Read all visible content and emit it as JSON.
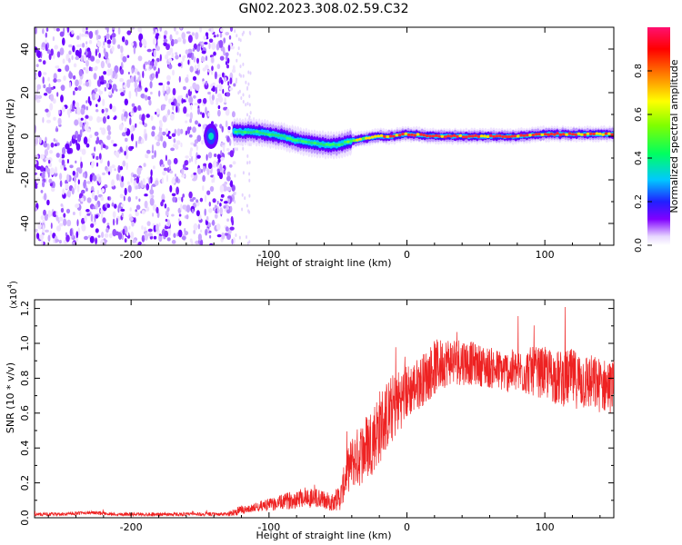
{
  "page_title": "GN02.2023.308.02.59.C32",
  "chart_data": [
    {
      "type": "heatmap",
      "title": "",
      "xlabel": "Height of straight line (km)",
      "ylabel": "Frequency (Hz)",
      "xlim": [
        -270,
        150
      ],
      "ylim": [
        -50,
        50
      ],
      "x_ticks": [
        -200,
        -100,
        0,
        100
      ],
      "x_tick_labels": [
        "-200",
        "-100",
        "0",
        "100"
      ],
      "y_ticks": [
        -40,
        -20,
        0,
        20,
        40
      ],
      "y_tick_labels": [
        "-40",
        "-20",
        "0",
        "20",
        "40"
      ],
      "colorscale": "rainbow (white-purple-blue-cyan-green-yellow-red)",
      "colorbar": {
        "label": "Normalized spectral amplitude",
        "range": [
          0,
          1
        ],
        "ticks": [
          0,
          0.2,
          0.4,
          0.6,
          0.8
        ],
        "tick_labels": [
          "0.0",
          "0.2",
          "0.4",
          "0.6",
          "0.8"
        ]
      },
      "noise_region_x": [
        -270,
        -125
      ],
      "ridge": {
        "x": [
          -125,
          -110,
          -100,
          -90,
          -80,
          -70,
          -60,
          -50,
          -45,
          -40,
          -30,
          -20,
          -10,
          0,
          20,
          40,
          60,
          80,
          100,
          120,
          150
        ],
        "frequency": [
          2,
          2,
          1,
          0,
          -2,
          -3,
          -4,
          -4,
          -3,
          -2,
          -1,
          0,
          0,
          1,
          0,
          0,
          0,
          0,
          1,
          1,
          1
        ],
        "amplitude": [
          0.45,
          0.45,
          0.5,
          0.45,
          0.4,
          0.4,
          0.4,
          0.4,
          0.5,
          0.7,
          0.75,
          0.8,
          0.85,
          0.9,
          0.95,
          0.9,
          0.9,
          0.9,
          0.9,
          0.9,
          0.85
        ]
      },
      "grid": false,
      "colors": {
        "high": "#ff2020",
        "mid": "#30e030",
        "low": "#6a00ff",
        "noise": "#a070ff"
      }
    },
    {
      "type": "line",
      "title": "",
      "xlabel": "Height of straight line (km)",
      "ylabel": "SNR (10 * v/v)",
      "y_multiplier_label": "(x10",
      "y_multiplier_exp": "4",
      "y_multiplier_close": ")",
      "xlim": [
        -270,
        150
      ],
      "ylim": [
        0,
        1.25
      ],
      "x_ticks": [
        -200,
        -100,
        0,
        100
      ],
      "x_tick_labels": [
        "-200",
        "-100",
        "0",
        "100"
      ],
      "y_ticks": [
        0,
        0.2,
        0.4,
        0.6,
        0.8,
        1.0,
        1.2
      ],
      "y_tick_labels": [
        "0.0",
        "0.2",
        "0.4",
        "0.6",
        "0.8",
        "1.0",
        "1.2"
      ],
      "series": [
        {
          "color": "#ee2222",
          "x": [
            -270,
            -250,
            -230,
            -210,
            -190,
            -170,
            -150,
            -130,
            -122,
            -115,
            -105,
            -95,
            -85,
            -75,
            -65,
            -55,
            -48,
            -44,
            -40,
            -35,
            -30,
            -25,
            -20,
            -15,
            -10,
            -5,
            0,
            10,
            20,
            30,
            40,
            50,
            60,
            70,
            80,
            90,
            100,
            110,
            120,
            130,
            140,
            150
          ],
          "y": [
            0.02,
            0.02,
            0.03,
            0.02,
            0.02,
            0.02,
            0.02,
            0.02,
            0.04,
            0.05,
            0.07,
            0.08,
            0.1,
            0.12,
            0.11,
            0.09,
            0.12,
            0.25,
            0.32,
            0.35,
            0.4,
            0.45,
            0.52,
            0.58,
            0.63,
            0.68,
            0.72,
            0.78,
            0.86,
            0.9,
            0.9,
            0.88,
            0.86,
            0.84,
            0.84,
            0.84,
            0.83,
            0.8,
            0.8,
            0.78,
            0.76,
            0.75
          ],
          "noise_amplitude": [
            0.01,
            0.01,
            0.01,
            0.01,
            0.01,
            0.01,
            0.01,
            0.01,
            0.03,
            0.02,
            0.03,
            0.04,
            0.05,
            0.06,
            0.06,
            0.05,
            0.08,
            0.12,
            0.15,
            0.18,
            0.2,
            0.2,
            0.22,
            0.2,
            0.2,
            0.18,
            0.16,
            0.15,
            0.16,
            0.14,
            0.14,
            0.12,
            0.12,
            0.12,
            0.13,
            0.14,
            0.15,
            0.16,
            0.17,
            0.17,
            0.16,
            0.15
          ]
        }
      ],
      "grid": false
    }
  ]
}
